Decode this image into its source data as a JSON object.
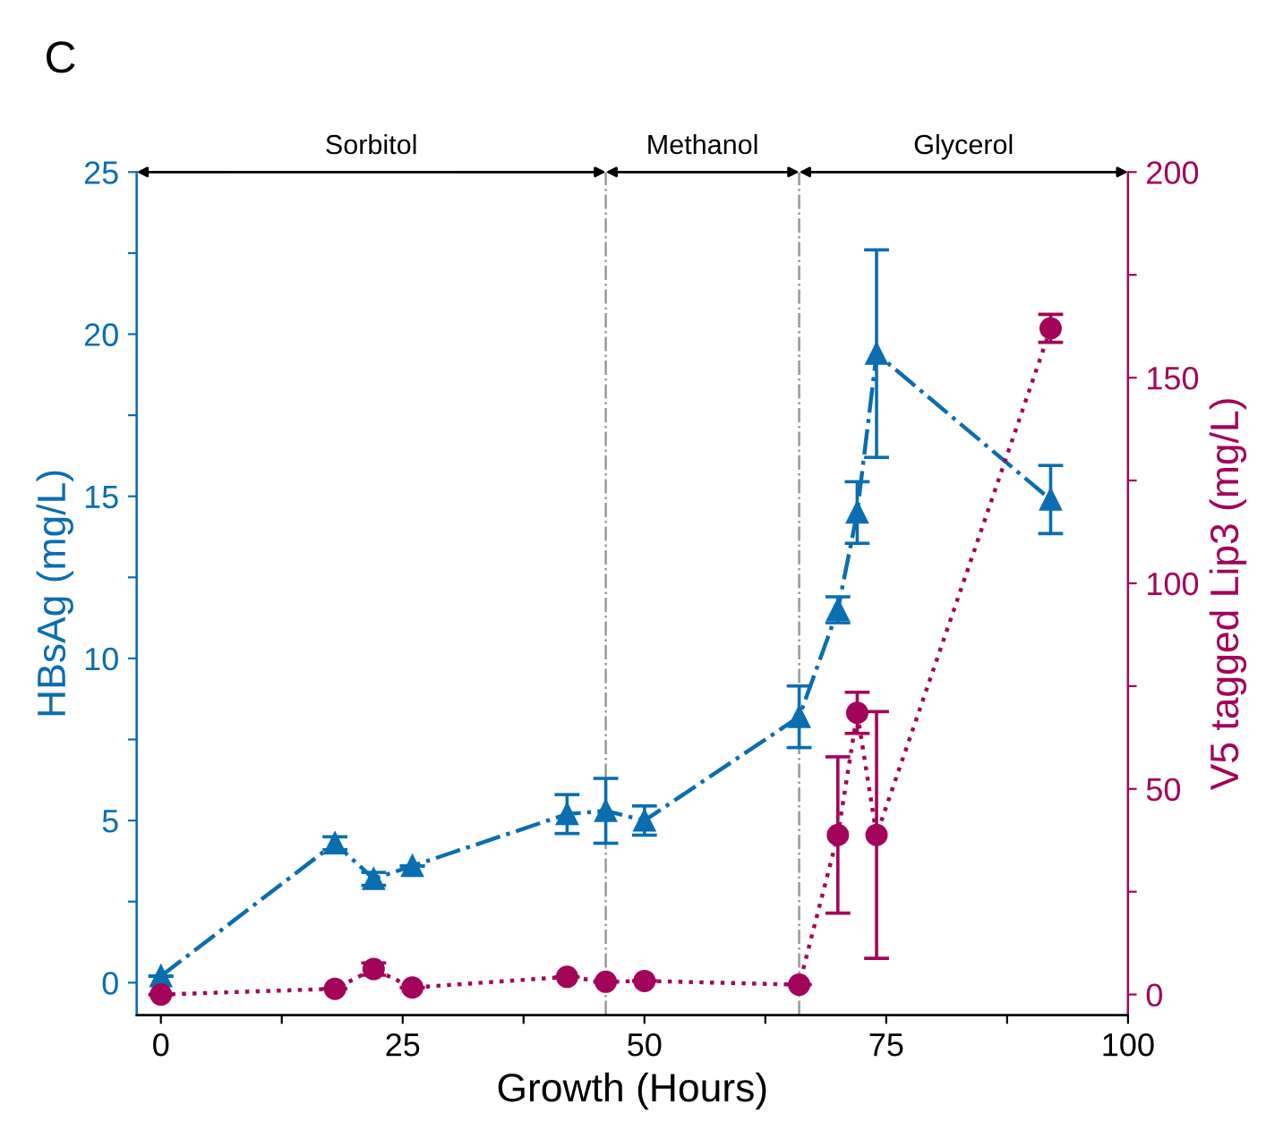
{
  "chart_data": {
    "type": "line",
    "xlabel": "Growth (Hours)",
    "ylabel": "HBsAg (mg/L)",
    "y2label": "V5 tagged Lip3 (mg/L)",
    "annotations": [
      "C",
      "Sorbitol",
      "Methanol",
      "Glycerol"
    ],
    "xlim": [
      -2.5,
      100
    ],
    "xticks": [
      0,
      {
        "value": 12.5,
        "label": null
      },
      25,
      {
        "value": 37.5,
        "label": null
      },
      50,
      {
        "value": 62.5,
        "label": null
      },
      75,
      {
        "value": 87.5,
        "label": null
      },
      100
    ],
    "ylim": [
      -1,
      25
    ],
    "yticks": [
      0,
      {
        "value": 2.5,
        "label": null
      },
      5,
      {
        "value": 7.5,
        "label": null
      },
      10,
      {
        "value": 12.5,
        "label": null
      },
      15,
      {
        "value": 17.5,
        "label": null
      },
      20,
      {
        "value": 22.5,
        "label": null
      },
      25
    ],
    "y2lim": [
      -5,
      200
    ],
    "y2ticks": [
      0,
      {
        "value": 25,
        "label": null
      },
      50,
      {
        "value": 75,
        "label": null
      },
      100,
      {
        "value": 125,
        "label": null
      },
      150,
      {
        "value": 175,
        "label": null
      },
      200
    ],
    "grid": false,
    "ref_lines": [
      {
        "axis": "x",
        "value": 46,
        "color": "#999999",
        "line_style": "dashdot"
      },
      {
        "axis": "x",
        "value": 66,
        "color": "#999999",
        "line_style": "dashdot"
      }
    ],
    "series": [
      {
        "color": "#0a6eb0",
        "marker": "triangle",
        "line_style": "dashdot",
        "x": [
          0,
          18,
          22,
          26,
          42,
          46,
          50,
          66,
          70,
          72,
          74,
          92
        ],
        "values": [
          0.2,
          4.3,
          3.2,
          3.6,
          5.2,
          5.3,
          5.0,
          8.2,
          11.5,
          14.5,
          19.4,
          14.9
        ],
        "errors": [
          null,
          0.2,
          0.2,
          null,
          0.6,
          1.0,
          0.45,
          0.95,
          0.4,
          0.95,
          3.2,
          1.05
        ]
      },
      {
        "color": "#a3045a",
        "marker": "circle",
        "line_style": "dotted",
        "axis": "y2",
        "x": [
          0,
          18,
          22,
          26,
          42,
          46,
          50,
          66,
          70,
          72,
          74,
          92
        ],
        "values": [
          0,
          1.4,
          6.2,
          1.7,
          4.3,
          3.1,
          3.3,
          2.4,
          38.8,
          68.5,
          38.8,
          162
        ],
        "errors": [
          null,
          null,
          1.5,
          null,
          null,
          null,
          null,
          null,
          19,
          5,
          30,
          3.4
        ]
      }
    ]
  }
}
